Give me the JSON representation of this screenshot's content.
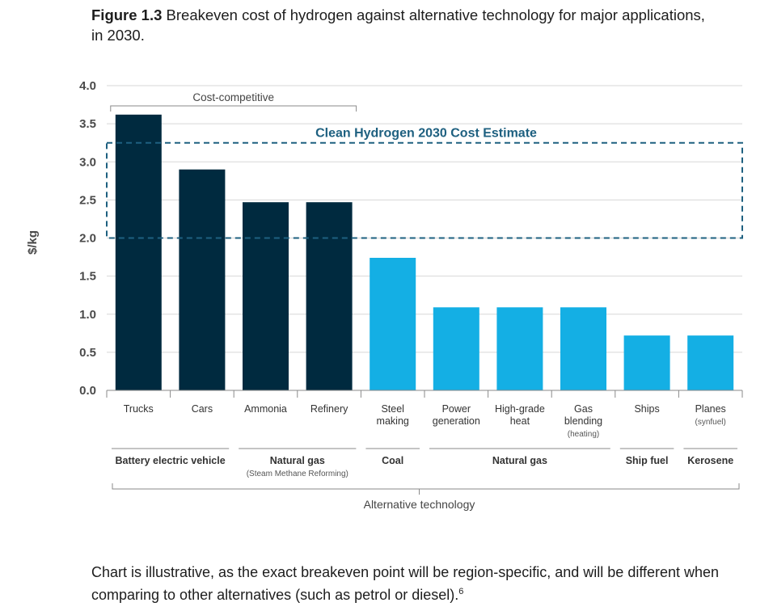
{
  "title": {
    "figure_number": "Figure 1.3",
    "text": "Breakeven cost of hydrogen against alternative technology for major applications, in 2030."
  },
  "footnote": {
    "text": "Chart is illustrative, as the exact breakeven point will be region-specific, and will be different when comparing to other alternatives (such as petrol or diesel).",
    "ref": "6"
  },
  "chart_data": {
    "type": "bar",
    "ylabel": "$/kg",
    "xlabel": "Alternative technology",
    "ylim": [
      0,
      4.0
    ],
    "yticks": [
      "0.0",
      "0.5",
      "1.0",
      "1.5",
      "2.0",
      "2.5",
      "3.0",
      "3.5",
      "4.0"
    ],
    "grid": true,
    "categories": [
      {
        "label": [
          "Trucks"
        ],
        "sub": ""
      },
      {
        "label": [
          "Cars"
        ],
        "sub": ""
      },
      {
        "label": [
          "Ammonia"
        ],
        "sub": ""
      },
      {
        "label": [
          "Refinery"
        ],
        "sub": ""
      },
      {
        "label": [
          "Steel",
          "making"
        ],
        "sub": ""
      },
      {
        "label": [
          "Power",
          "generation"
        ],
        "sub": ""
      },
      {
        "label": [
          "High-grade",
          "heat"
        ],
        "sub": ""
      },
      {
        "label": [
          "Gas",
          "blending"
        ],
        "sub": "(heating)"
      },
      {
        "label": [
          "Ships"
        ],
        "sub": ""
      },
      {
        "label": [
          "Planes"
        ],
        "sub": "(synfuel)"
      }
    ],
    "values": [
      3.62,
      2.9,
      2.47,
      2.47,
      1.74,
      1.09,
      1.09,
      1.09,
      0.72,
      0.72
    ],
    "colors": {
      "cost_competitive": "#002a3f",
      "other": "#14afe4",
      "estimate_box": "#1e6080",
      "grid": "#d7d7d7"
    },
    "bar_group": [
      "cost_competitive",
      "cost_competitive",
      "cost_competitive",
      "cost_competitive",
      "other",
      "other",
      "other",
      "other",
      "other",
      "other"
    ],
    "cost_competitive_label": "Cost-competitive",
    "cost_competitive_range": [
      0,
      3
    ],
    "estimate_band": {
      "label": "Clean Hydrogen 2030 Cost Estimate",
      "low": 2.0,
      "high": 3.25
    },
    "alternative_groups": [
      {
        "name": "Battery electric vehicle",
        "sub": "",
        "range": [
          0,
          1
        ]
      },
      {
        "name": "Natural gas",
        "sub": "(Steam Methane Reforming)",
        "range": [
          2,
          3
        ]
      },
      {
        "name": "Coal",
        "sub": "",
        "range": [
          4,
          4
        ]
      },
      {
        "name": "Natural gas",
        "sub": "",
        "range": [
          5,
          7
        ]
      },
      {
        "name": "Ship fuel",
        "sub": "",
        "range": [
          8,
          8
        ]
      },
      {
        "name": "Kerosene",
        "sub": "",
        "range": [
          9,
          9
        ]
      }
    ]
  }
}
